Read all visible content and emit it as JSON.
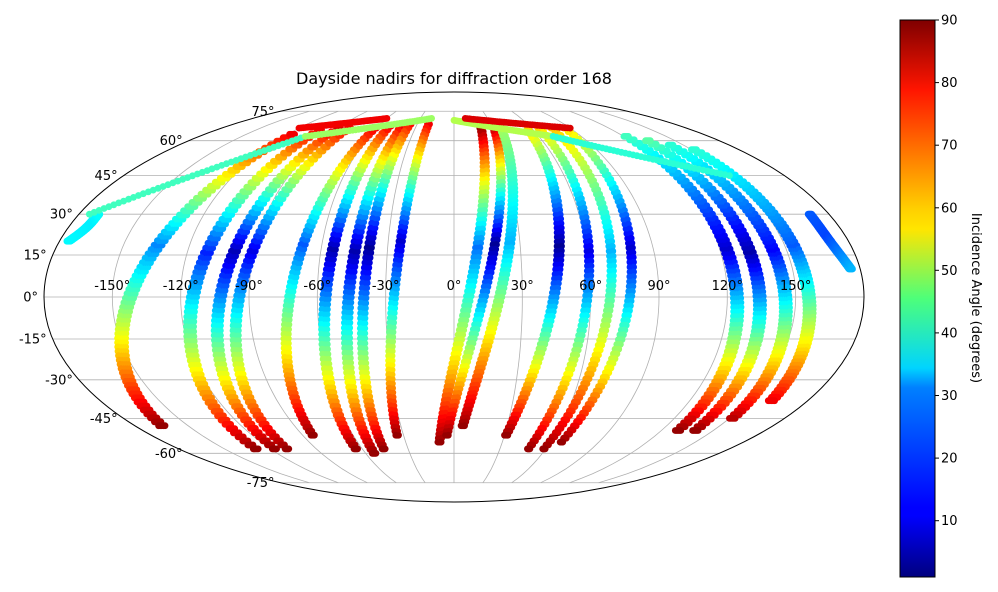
{
  "chart_data": {
    "type": "scatter",
    "title": "Dayside nadirs for diffraction order 168",
    "projection": "Mollweide",
    "grid": true,
    "x_ticks": [
      "-150°",
      "-120°",
      "-90°",
      "-60°",
      "-30°",
      "0°",
      "30°",
      "60°",
      "90°",
      "120°",
      "150°"
    ],
    "y_ticks": [
      "75°",
      "60°",
      "45°",
      "30°",
      "15°",
      "0°",
      "-15°",
      "-30°",
      "-45°",
      "-60°",
      "-75°"
    ],
    "colorbar": {
      "label": "Incidence Angle (degrees)",
      "colormap": "jet",
      "range": [
        1,
        90
      ],
      "ticks": [
        "10",
        "20",
        "30",
        "40",
        "50",
        "60",
        "70",
        "80",
        "90"
      ]
    },
    "tracks": [
      {
        "lon_north": -115,
        "lat_north": 63,
        "dlon": -0.9,
        "lon_south": -163,
        "lat_south": -48,
        "inc_north": 80,
        "inc_min": 24,
        "inc_south": 88
      },
      {
        "lon_north": -100,
        "lat_north": 65,
        "dlon": -0.8,
        "lon_south": -128,
        "lat_south": -58,
        "inc_north": 80,
        "inc_min": 15,
        "inc_south": 88
      },
      {
        "lon_north": -88,
        "lat_north": 66,
        "dlon": -0.7,
        "lon_south": -116,
        "lat_south": -58,
        "inc_north": 82,
        "inc_min": 6,
        "inc_south": 88
      },
      {
        "lon_north": -80,
        "lat_north": 66,
        "dlon": -0.6,
        "lon_south": -108,
        "lat_south": -58,
        "inc_north": 80,
        "inc_min": 10,
        "inc_south": 88
      },
      {
        "lon_north": -60,
        "lat_north": 66,
        "dlon": -0.5,
        "lon_south": -83,
        "lat_south": -52,
        "inc_north": 80,
        "inc_min": 20,
        "inc_south": 88
      },
      {
        "lon_north": -50,
        "lat_north": 67,
        "dlon": -0.6,
        "lon_south": -63,
        "lat_south": -58,
        "inc_north": 80,
        "inc_min": 5,
        "inc_south": 88
      },
      {
        "lon_north": -40,
        "lat_north": 67,
        "dlon": -0.6,
        "lon_south": -53,
        "lat_south": -60,
        "inc_north": 80,
        "inc_min": 5,
        "inc_south": 88
      },
      {
        "lon_north": -35,
        "lat_north": 68,
        "dlon": -0.5,
        "lon_south": -45,
        "lat_south": -58,
        "inc_north": 78,
        "inc_min": 3,
        "inc_south": 88
      },
      {
        "lon_north": -20,
        "lat_north": 68,
        "dlon": -0.4,
        "lon_south": -33,
        "lat_south": -52,
        "inc_north": 80,
        "inc_min": 8,
        "inc_south": 88
      },
      {
        "lon_north": 20,
        "lat_north": 66,
        "dlon": 0.5,
        "lon_south": -10,
        "lat_south": -55,
        "inc_north": 88,
        "inc_min": 22,
        "inc_south": 88
      },
      {
        "lon_north": 30,
        "lat_north": 66,
        "dlon": 0.4,
        "lon_south": -5,
        "lat_south": -52,
        "inc_north": 85,
        "inc_min": 3,
        "inc_south": 88
      },
      {
        "lon_north": 35,
        "lat_north": 64,
        "dlon": 0.5,
        "lon_south": 4,
        "lat_south": -48,
        "inc_north": 48,
        "inc_min": 28,
        "inc_south": 88
      },
      {
        "lon_north": 55,
        "lat_north": 65,
        "dlon": 0.5,
        "lon_south": 30,
        "lat_south": -52,
        "inc_north": 60,
        "inc_min": 3,
        "inc_south": 88
      },
      {
        "lon_north": 65,
        "lat_north": 66,
        "dlon": 0.4,
        "lon_south": 48,
        "lat_south": -58,
        "inc_north": 60,
        "inc_min": 10,
        "inc_south": 88
      },
      {
        "lon_north": 75,
        "lat_north": 66,
        "dlon": 0.4,
        "lon_south": 58,
        "lat_south": -58,
        "inc_north": 62,
        "inc_min": 28,
        "inc_south": 88
      },
      {
        "lon_north": 85,
        "lat_north": 66,
        "dlon": 0.4,
        "lon_south": 66,
        "lat_south": -55,
        "inc_north": 60,
        "inc_min": 8,
        "inc_south": 88
      },
      {
        "lon_north": 120,
        "lat_north": 62,
        "dlon": 0.8,
        "lon_south": 128,
        "lat_south": -50,
        "inc_north": 40,
        "inc_min": 8,
        "inc_south": 88
      },
      {
        "lon_north": 130,
        "lat_north": 60,
        "dlon": 0.8,
        "lon_south": 138,
        "lat_south": -50,
        "inc_north": 42,
        "inc_min": 5,
        "inc_south": 88
      },
      {
        "lon_north": 140,
        "lat_north": 58,
        "dlon": 0.8,
        "lon_south": 150,
        "lat_south": -45,
        "inc_north": 38,
        "inc_min": 12,
        "inc_south": 85
      },
      {
        "lon_north": 150,
        "lat_north": 56,
        "dlon": 0.8,
        "lon_south": 160,
        "lat_south": -38,
        "inc_north": 38,
        "inc_min": 20,
        "inc_south": 80
      },
      {
        "lon_north": 170,
        "lat_north": 30,
        "dlon": 0.4,
        "lon_south": 175,
        "lat_south": 10,
        "inc_north": 20,
        "inc_min": 18,
        "inc_south": 28
      },
      {
        "lon_north": -170,
        "lat_north": 30,
        "dlon": -0.4,
        "lon_south": -175,
        "lat_south": 20,
        "inc_north": 35,
        "inc_min": 33,
        "inc_south": 34
      }
    ],
    "high_lat_arcs": [
      {
        "lat_start": 30,
        "lat_end": 62,
        "lon_start": -175,
        "lon_end": -105,
        "inc": 40
      },
      {
        "lat_start": 62,
        "lat_end": 71,
        "lon_start": -105,
        "lon_end": -20,
        "inc": 48
      },
      {
        "lat_start": 70,
        "lat_end": 62,
        "lon_start": 0,
        "lon_end": 70,
        "inc": 50
      },
      {
        "lat_start": 62,
        "lat_end": 45,
        "lon_start": 70,
        "lon_end": 150,
        "inc": 38
      },
      {
        "lat_start": 66,
        "lat_end": 71,
        "lon_start": -120,
        "lon_end": -60,
        "inc": 80
      },
      {
        "lat_start": 71,
        "lat_end": 66,
        "lon_start": 10,
        "lon_end": 90,
        "inc": 82
      }
    ]
  }
}
